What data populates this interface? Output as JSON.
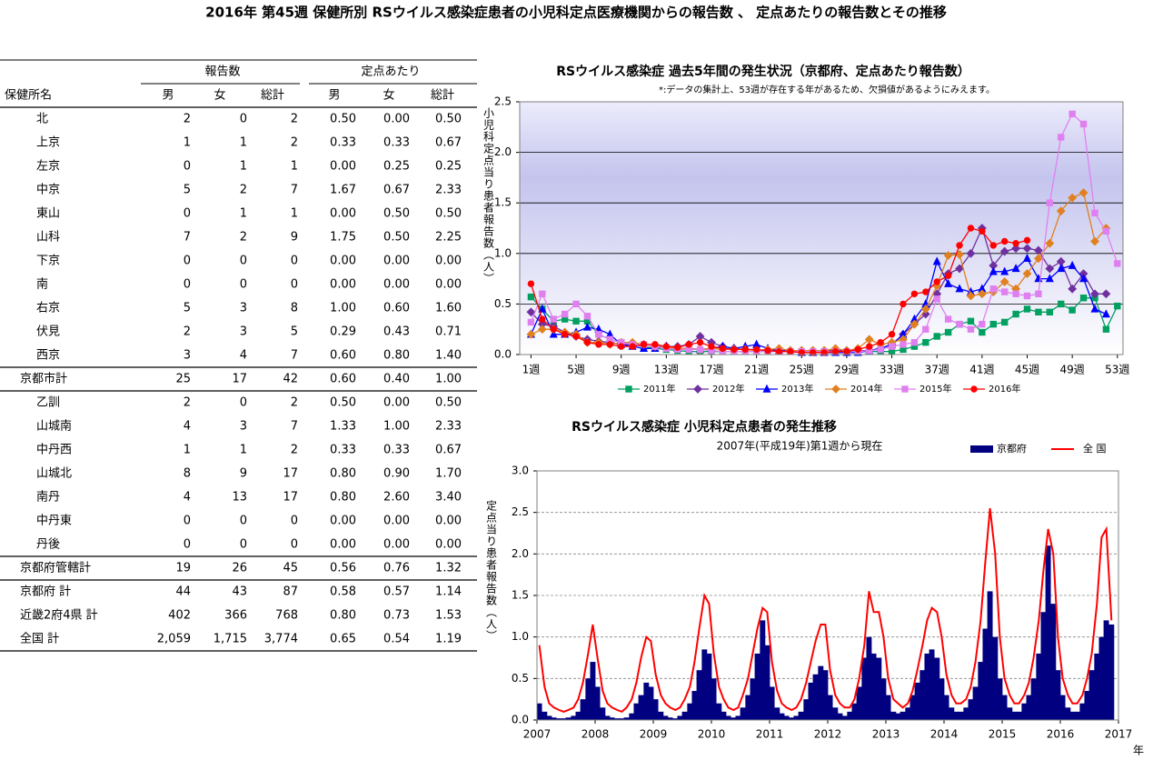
{
  "title": "2016年 第45週 保健所別 RSウイルス感染症患者の小児科定点医療機関からの報告数 、 定点あたりの報告数とその推移",
  "table": {
    "groups": [
      "報告数",
      "定点あたり"
    ],
    "columns": [
      "保健所名",
      "男",
      "女",
      "総計",
      "男",
      "女",
      "総計"
    ],
    "rows": [
      [
        "北",
        "2",
        "0",
        "2",
        "0.50",
        "0.00",
        "0.50"
      ],
      [
        "上京",
        "1",
        "1",
        "2",
        "0.33",
        "0.33",
        "0.67"
      ],
      [
        "左京",
        "0",
        "1",
        "1",
        "0.00",
        "0.25",
        "0.25"
      ],
      [
        "中京",
        "5",
        "2",
        "7",
        "1.67",
        "0.67",
        "2.33"
      ],
      [
        "東山",
        "0",
        "1",
        "1",
        "0.00",
        "0.50",
        "0.50"
      ],
      [
        "山科",
        "7",
        "2",
        "9",
        "1.75",
        "0.50",
        "2.25"
      ],
      [
        "下京",
        "0",
        "0",
        "0",
        "0.00",
        "0.00",
        "0.00"
      ],
      [
        "南",
        "0",
        "0",
        "0",
        "0.00",
        "0.00",
        "0.00"
      ],
      [
        "右京",
        "5",
        "3",
        "8",
        "1.00",
        "0.60",
        "1.60"
      ],
      [
        "伏見",
        "2",
        "3",
        "5",
        "0.29",
        "0.43",
        "0.71"
      ],
      [
        "西京",
        "3",
        "4",
        "7",
        "0.60",
        "0.80",
        "1.40"
      ],
      [
        "京都市計",
        "25",
        "17",
        "42",
        "0.60",
        "0.40",
        "1.00"
      ],
      [
        "乙訓",
        "2",
        "0",
        "2",
        "0.50",
        "0.00",
        "0.50"
      ],
      [
        "山城南",
        "4",
        "3",
        "7",
        "1.33",
        "1.00",
        "2.33"
      ],
      [
        "中丹西",
        "1",
        "1",
        "2",
        "0.33",
        "0.33",
        "0.67"
      ],
      [
        "山城北",
        "8",
        "9",
        "17",
        "0.80",
        "0.90",
        "1.70"
      ],
      [
        "南丹",
        "4",
        "13",
        "17",
        "0.80",
        "2.60",
        "3.40"
      ],
      [
        "中丹東",
        "0",
        "0",
        "0",
        "0.00",
        "0.00",
        "0.00"
      ],
      [
        "丹後",
        "0",
        "0",
        "0",
        "0.00",
        "0.00",
        "0.00"
      ],
      [
        "京都府管轄計",
        "19",
        "26",
        "45",
        "0.56",
        "0.76",
        "1.32"
      ],
      [
        "京都府 計",
        "44",
        "43",
        "87",
        "0.58",
        "0.57",
        "1.14"
      ],
      [
        "近畿2府4県 計",
        "402",
        "366",
        "768",
        "0.80",
        "0.73",
        "1.53"
      ],
      [
        "全国 計",
        "2,059",
        "1,715",
        "3,774",
        "0.65",
        "0.54",
        "1.19"
      ]
    ]
  },
  "chart_data": [
    {
      "type": "line",
      "title": "RSウイルス感染症 過去5年間の発生状況（京都府、定点あたり報告数）",
      "subtitle": "*:データの集計上、53週が存在する年があるため、欠損値があるようにみえます。",
      "y_label": "小児科定点当り患者報告数（人）",
      "grid": true,
      "x": [
        1,
        2,
        3,
        4,
        5,
        6,
        7,
        8,
        9,
        10,
        11,
        12,
        13,
        14,
        15,
        16,
        17,
        18,
        19,
        20,
        21,
        22,
        23,
        24,
        25,
        26,
        27,
        28,
        29,
        30,
        31,
        32,
        33,
        34,
        35,
        36,
        37,
        38,
        39,
        40,
        41,
        42,
        43,
        44,
        45,
        46,
        47,
        48,
        49,
        50,
        51,
        52,
        53
      ],
      "xlim": [
        0,
        53.5
      ],
      "xticks": [
        {
          "value": 1,
          "label": "1週"
        },
        {
          "value": 5,
          "label": "5週"
        },
        {
          "value": 9,
          "label": "9週"
        },
        {
          "value": 13,
          "label": "13週"
        },
        {
          "value": 17,
          "label": "17週"
        },
        {
          "value": 21,
          "label": "21週"
        },
        {
          "value": 25,
          "label": "25週"
        },
        {
          "value": 29,
          "label": "29週"
        },
        {
          "value": 33,
          "label": "33週"
        },
        {
          "value": 37,
          "label": "37週"
        },
        {
          "value": 41,
          "label": "41週"
        },
        {
          "value": 45,
          "label": "45週"
        },
        {
          "value": 49,
          "label": "49週"
        },
        {
          "value": 53,
          "label": "53週"
        }
      ],
      "ylim": [
        0,
        2.5
      ],
      "yticks": [
        {
          "value": 0,
          "label": "0.0"
        },
        0.5,
        {
          "value": 1,
          "label": "1.0"
        },
        1.5,
        {
          "value": 2,
          "label": "2.0"
        },
        2.5
      ],
      "series": [
        {
          "name": "2011年",
          "color": "#00a060",
          "marker": "square",
          "values": [
            0.57,
            0.45,
            0.33,
            0.35,
            0.33,
            0.33,
            0.2,
            0.15,
            0.12,
            0.1,
            0.08,
            0.06,
            0.05,
            0.04,
            0.03,
            0.03,
            0.03,
            0.03,
            0.03,
            0.03,
            0.03,
            0.03,
            0.03,
            0.03,
            0.03,
            0.03,
            0.03,
            0.03,
            0.03,
            0.03,
            0.03,
            0.03,
            0.03,
            0.05,
            0.08,
            0.12,
            0.18,
            0.22,
            0.3,
            0.33,
            0.22,
            0.3,
            0.32,
            0.4,
            0.45,
            0.42,
            0.42,
            0.5,
            0.44,
            0.56,
            0.56,
            0.25,
            0.48
          ]
        },
        {
          "name": "2012年",
          "color": "#7030a0",
          "marker": "diamond",
          "values": [
            0.42,
            0.3,
            0.28,
            0.22,
            0.18,
            0.15,
            0.13,
            0.12,
            0.1,
            0.1,
            0.1,
            0.08,
            0.08,
            0.08,
            0.1,
            0.18,
            0.12,
            0.08,
            0.06,
            0.05,
            0.04,
            0.04,
            0.04,
            0.04,
            0.04,
            0.04,
            0.04,
            0.04,
            0.04,
            0.04,
            0.04,
            0.06,
            0.1,
            0.2,
            0.3,
            0.4,
            0.6,
            0.8,
            0.85,
            1.0,
            1.25,
            0.88,
            1.02,
            1.05,
            1.05,
            1.03,
            0.85,
            0.92,
            0.65,
            0.8,
            0.6,
            0.6,
            null
          ]
        },
        {
          "name": "2013年",
          "color": "#0000ff",
          "marker": "triangle",
          "values": [
            0.2,
            0.45,
            0.2,
            0.2,
            0.22,
            0.27,
            0.25,
            0.2,
            0.1,
            0.08,
            0.06,
            0.06,
            0.08,
            0.06,
            0.06,
            0.05,
            0.06,
            0.08,
            0.06,
            0.08,
            0.1,
            0.06,
            0.04,
            0.03,
            0.02,
            0.02,
            0.02,
            0.02,
            0.02,
            0.02,
            0.04,
            0.06,
            0.1,
            0.2,
            0.35,
            0.5,
            0.92,
            0.7,
            0.65,
            0.62,
            0.65,
            0.82,
            0.82,
            0.85,
            0.95,
            0.75,
            0.75,
            0.85,
            0.88,
            0.75,
            0.45,
            0.4,
            null
          ]
        },
        {
          "name": "2014年",
          "color": "#e08020",
          "marker": "diamond",
          "values": [
            0.2,
            0.25,
            0.25,
            0.22,
            0.2,
            0.12,
            0.12,
            0.1,
            0.12,
            0.12,
            0.1,
            0.08,
            0.07,
            0.06,
            0.06,
            0.05,
            0.06,
            0.05,
            0.05,
            0.05,
            0.04,
            0.05,
            0.06,
            0.04,
            0.04,
            0.04,
            0.04,
            0.06,
            0.04,
            0.06,
            0.15,
            0.1,
            0.12,
            0.15,
            0.3,
            0.45,
            0.68,
            0.98,
            0.99,
            0.58,
            0.6,
            0.62,
            0.72,
            0.65,
            0.8,
            0.95,
            1.1,
            1.42,
            1.55,
            1.6,
            1.12,
            1.25,
            null
          ]
        },
        {
          "name": "2015年",
          "color": "#e080f0",
          "marker": "square",
          "values": [
            0.32,
            0.6,
            0.35,
            0.4,
            0.5,
            0.38,
            0.2,
            0.15,
            0.12,
            0.1,
            0.1,
            0.08,
            0.06,
            0.05,
            0.05,
            0.05,
            0.04,
            0.03,
            0.03,
            0.03,
            0.03,
            0.03,
            0.03,
            0.03,
            0.03,
            0.03,
            0.03,
            0.03,
            0.03,
            0.03,
            0.04,
            0.05,
            0.08,
            0.1,
            0.12,
            0.25,
            0.55,
            0.35,
            0.3,
            0.25,
            0.3,
            0.65,
            0.62,
            0.6,
            0.58,
            0.6,
            1.5,
            2.15,
            2.38,
            2.28,
            1.4,
            1.22,
            0.9
          ]
        },
        {
          "name": "2016年",
          "color": "#ff0000",
          "marker": "circle",
          "values": [
            0.7,
            0.35,
            0.25,
            0.2,
            0.18,
            0.12,
            0.1,
            0.1,
            0.08,
            0.08,
            0.1,
            0.1,
            0.08,
            0.07,
            0.1,
            0.12,
            0.08,
            0.06,
            0.05,
            0.05,
            0.05,
            0.04,
            0.03,
            0.03,
            0.02,
            0.02,
            0.02,
            0.03,
            0.03,
            0.05,
            0.08,
            0.12,
            0.2,
            0.5,
            0.6,
            0.62,
            0.72,
            0.78,
            1.08,
            1.25,
            1.22,
            1.08,
            1.12,
            1.1,
            1.13,
            null,
            null,
            null,
            null,
            null,
            null,
            null,
            null
          ]
        }
      ]
    },
    {
      "type": "bar",
      "title": "RSウイルス感染症 小児科定点患者の発生推移",
      "subtitle": "2007年(平成19年)第1週から現在",
      "y_label": "定点当り患者報告数（人）",
      "x_unit": "年",
      "grid": true,
      "x": [
        2007.04,
        2007.13,
        2007.21,
        2007.29,
        2007.38,
        2007.46,
        2007.54,
        2007.63,
        2007.71,
        2007.79,
        2007.88,
        2007.96,
        2008.04,
        2008.13,
        2008.21,
        2008.29,
        2008.38,
        2008.46,
        2008.54,
        2008.63,
        2008.71,
        2008.79,
        2008.88,
        2008.96,
        2009.04,
        2009.13,
        2009.21,
        2009.29,
        2009.38,
        2009.46,
        2009.54,
        2009.63,
        2009.71,
        2009.79,
        2009.88,
        2009.96,
        2010.04,
        2010.13,
        2010.21,
        2010.29,
        2010.38,
        2010.46,
        2010.54,
        2010.63,
        2010.71,
        2010.79,
        2010.88,
        2010.96,
        2011.04,
        2011.13,
        2011.21,
        2011.29,
        2011.38,
        2011.46,
        2011.54,
        2011.63,
        2011.71,
        2011.79,
        2011.88,
        2011.96,
        2012.04,
        2012.13,
        2012.21,
        2012.29,
        2012.38,
        2012.46,
        2012.54,
        2012.63,
        2012.71,
        2012.79,
        2012.88,
        2012.96,
        2013.04,
        2013.13,
        2013.21,
        2013.29,
        2013.38,
        2013.46,
        2013.54,
        2013.63,
        2013.71,
        2013.79,
        2013.88,
        2013.96,
        2014.04,
        2014.13,
        2014.21,
        2014.29,
        2014.38,
        2014.46,
        2014.54,
        2014.63,
        2014.71,
        2014.79,
        2014.88,
        2014.96,
        2015.04,
        2015.13,
        2015.21,
        2015.29,
        2015.38,
        2015.46,
        2015.54,
        2015.63,
        2015.71,
        2015.79,
        2015.88,
        2015.96,
        2016.04,
        2016.13,
        2016.21,
        2016.29,
        2016.38,
        2016.46,
        2016.54,
        2016.63,
        2016.71,
        2016.79,
        2016.88
      ],
      "xlim": [
        2007,
        2017
      ],
      "xticks": [
        2007,
        2008,
        2009,
        2010,
        2011,
        2012,
        2013,
        2014,
        2015,
        2016,
        2017
      ],
      "ylim": [
        0,
        3
      ],
      "yticks": [
        {
          "value": 0,
          "label": "0.0"
        },
        0.5,
        {
          "value": 1,
          "label": "1.0"
        },
        1.5,
        {
          "value": 2,
          "label": "2.0"
        },
        2.5,
        {
          "value": 3,
          "label": "3.0"
        }
      ],
      "series": [
        {
          "name": "京都府",
          "color": "#000080",
          "values": [
            0.2,
            0.1,
            0.05,
            0.03,
            0.02,
            0.02,
            0.03,
            0.05,
            0.1,
            0.25,
            0.5,
            0.7,
            0.4,
            0.15,
            0.05,
            0.03,
            0.02,
            0.02,
            0.03,
            0.08,
            0.2,
            0.3,
            0.45,
            0.4,
            0.25,
            0.1,
            0.05,
            0.03,
            0.02,
            0.05,
            0.1,
            0.2,
            0.35,
            0.6,
            0.85,
            0.8,
            0.5,
            0.2,
            0.1,
            0.05,
            0.03,
            0.05,
            0.15,
            0.3,
            0.5,
            0.8,
            1.2,
            0.9,
            0.4,
            0.15,
            0.08,
            0.05,
            0.03,
            0.05,
            0.1,
            0.25,
            0.45,
            0.55,
            0.65,
            0.6,
            0.3,
            0.15,
            0.08,
            0.05,
            0.1,
            0.2,
            0.4,
            0.75,
            1.0,
            0.8,
            0.75,
            0.5,
            0.3,
            0.1,
            0.08,
            0.1,
            0.15,
            0.3,
            0.45,
            0.6,
            0.8,
            0.85,
            0.75,
            0.5,
            0.3,
            0.15,
            0.1,
            0.1,
            0.15,
            0.25,
            0.4,
            0.7,
            1.1,
            1.55,
            1.0,
            0.5,
            0.3,
            0.15,
            0.1,
            0.1,
            0.2,
            0.3,
            0.5,
            0.8,
            1.3,
            2.1,
            1.4,
            0.6,
            0.3,
            0.15,
            0.1,
            0.1,
            0.2,
            0.35,
            0.6,
            0.8,
            1.0,
            1.2,
            1.15
          ]
        },
        {
          "name": "全 国",
          "color": "#ff0000",
          "type": "line",
          "values": [
            0.9,
            0.4,
            0.2,
            0.15,
            0.12,
            0.1,
            0.12,
            0.15,
            0.25,
            0.45,
            0.8,
            1.15,
            0.75,
            0.35,
            0.2,
            0.15,
            0.12,
            0.1,
            0.15,
            0.25,
            0.45,
            0.75,
            1.0,
            0.95,
            0.55,
            0.3,
            0.2,
            0.15,
            0.12,
            0.15,
            0.25,
            0.4,
            0.7,
            1.1,
            1.5,
            1.4,
            0.8,
            0.4,
            0.25,
            0.15,
            0.12,
            0.15,
            0.3,
            0.5,
            0.8,
            1.1,
            1.35,
            1.3,
            0.7,
            0.35,
            0.2,
            0.15,
            0.12,
            0.15,
            0.25,
            0.45,
            0.7,
            0.95,
            1.15,
            1.15,
            0.6,
            0.3,
            0.2,
            0.15,
            0.15,
            0.25,
            0.5,
            0.9,
            1.55,
            1.3,
            1.3,
            1.0,
            0.5,
            0.25,
            0.2,
            0.15,
            0.2,
            0.35,
            0.6,
            0.9,
            1.2,
            1.35,
            1.3,
            1.0,
            0.55,
            0.3,
            0.2,
            0.2,
            0.25,
            0.4,
            0.7,
            1.2,
            1.9,
            2.55,
            2.0,
            1.0,
            0.5,
            0.3,
            0.2,
            0.2,
            0.3,
            0.45,
            0.75,
            1.2,
            1.8,
            2.3,
            2.0,
            1.0,
            0.5,
            0.3,
            0.2,
            0.2,
            0.3,
            0.5,
            0.8,
            1.4,
            2.2,
            2.3,
            1.2
          ]
        }
      ]
    }
  ]
}
